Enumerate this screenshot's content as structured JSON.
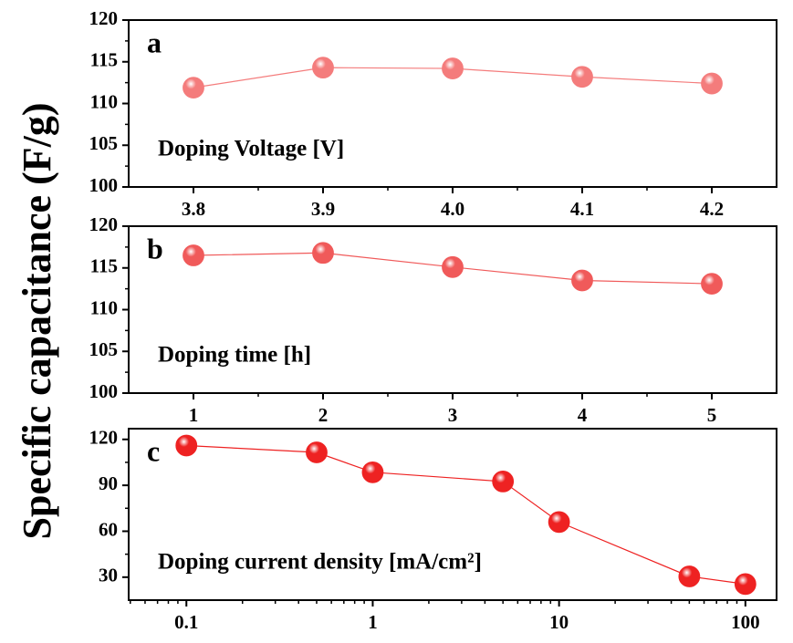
{
  "shared_ylabel": "Specific capacitance (F/g)",
  "chart_data": [
    {
      "type": "line",
      "panel_label": "a",
      "annotation": "Doping Voltage [V]",
      "x": [
        3.8,
        3.9,
        4.0,
        4.1,
        4.2
      ],
      "series": [
        {
          "color": "#f47c7c",
          "values": [
            111.9,
            114.3,
            114.2,
            113.2,
            112.4
          ]
        }
      ],
      "xlim": [
        3.75,
        4.25
      ],
      "xticks": [
        3.8,
        3.9,
        {
          "value": 4,
          "label": "4.0"
        },
        4.1,
        4.2
      ],
      "ylim": [
        100,
        120
      ],
      "yticks": [
        100,
        105,
        110,
        115,
        120
      ]
    },
    {
      "type": "line",
      "panel_label": "b",
      "annotation": "Doping time [h]",
      "x": [
        1,
        2,
        3,
        4,
        5
      ],
      "series": [
        {
          "color": "#f05a5a",
          "values": [
            116.5,
            116.8,
            115.1,
            113.5,
            113.1
          ]
        }
      ],
      "xlim": [
        0.5,
        5.5
      ],
      "xticks": [
        1,
        2,
        3,
        4,
        5
      ],
      "ylim": [
        100,
        120
      ],
      "yticks": [
        100,
        105,
        110,
        115,
        120
      ]
    },
    {
      "type": "line",
      "panel_label": "c",
      "annotation": "Doping current density [mA/cm²]",
      "x": [
        0.1,
        0.5,
        1,
        5,
        10,
        50,
        100
      ],
      "series": [
        {
          "color": "#ee2222",
          "values": [
            116,
            111.5,
            98.5,
            92.5,
            66,
            30.5,
            25.5
          ]
        }
      ],
      "xscale": "log",
      "xlim": [
        0.049,
        147
      ],
      "xticks": [
        0.1,
        1,
        10,
        100
      ],
      "ylim": [
        15,
        127
      ],
      "yticks": [
        30,
        60,
        90,
        120
      ]
    }
  ]
}
